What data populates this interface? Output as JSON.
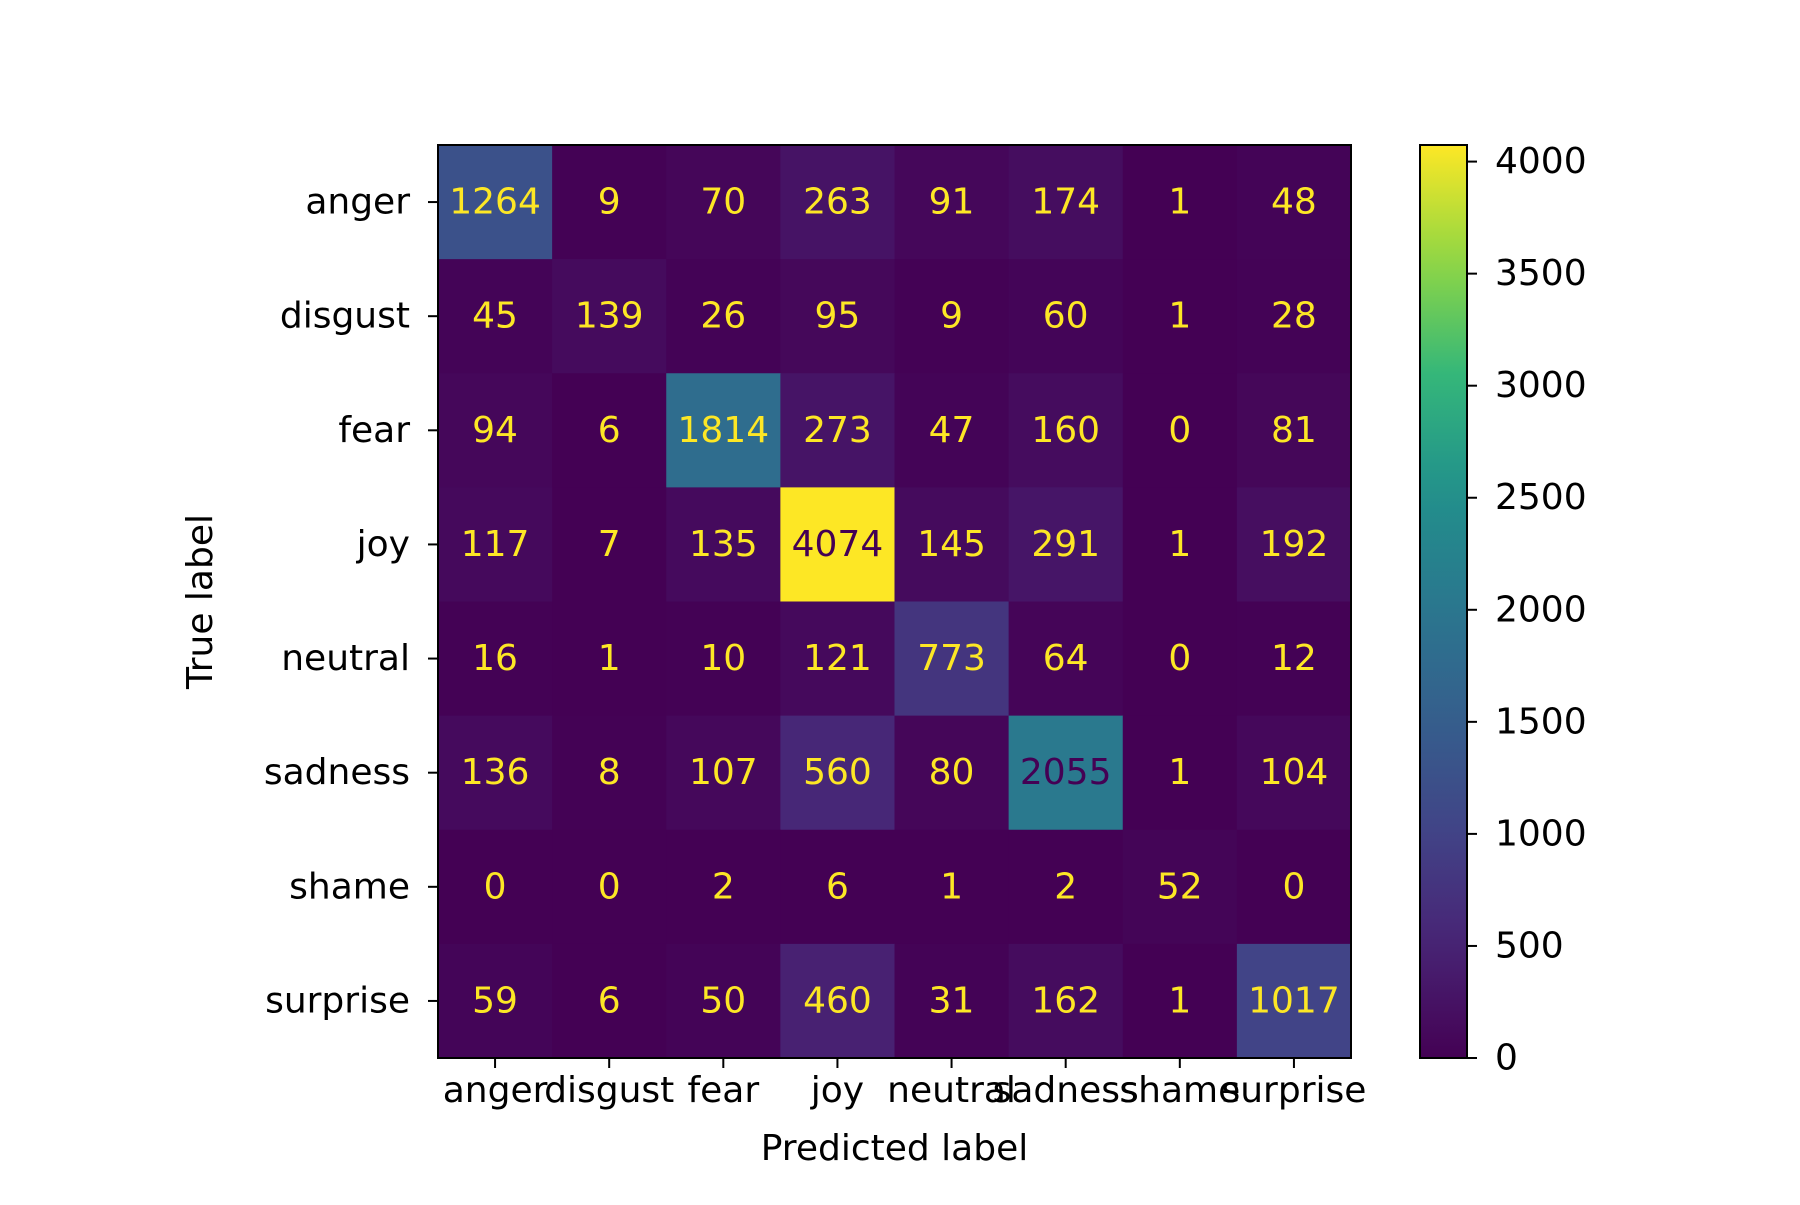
{
  "chart_data": {
    "type": "heatmap",
    "title": "",
    "xlabel": "Predicted label",
    "ylabel": "True label",
    "categories": [
      "anger",
      "disgust",
      "fear",
      "joy",
      "neutral",
      "sadness",
      "shame",
      "surprise"
    ],
    "rows": [
      "anger",
      "disgust",
      "fear",
      "joy",
      "neutral",
      "sadness",
      "shame",
      "surprise"
    ],
    "values": [
      [
        1264,
        9,
        70,
        263,
        91,
        174,
        1,
        48
      ],
      [
        45,
        139,
        26,
        95,
        9,
        60,
        1,
        28
      ],
      [
        94,
        6,
        1814,
        273,
        47,
        160,
        0,
        81
      ],
      [
        117,
        7,
        135,
        4074,
        145,
        291,
        1,
        192
      ],
      [
        16,
        1,
        10,
        121,
        773,
        64,
        0,
        12
      ],
      [
        136,
        8,
        107,
        560,
        80,
        2055,
        1,
        104
      ],
      [
        0,
        0,
        2,
        6,
        1,
        2,
        52,
        0
      ],
      [
        59,
        6,
        50,
        460,
        31,
        162,
        1,
        1017
      ]
    ],
    "colormap": "viridis",
    "colorbar": {
      "range": [
        0,
        4074
      ],
      "ticks": [
        0,
        500,
        1000,
        1500,
        2000,
        2500,
        3000,
        3500,
        4000
      ]
    },
    "grid": false,
    "legend": "colorbar-right"
  }
}
